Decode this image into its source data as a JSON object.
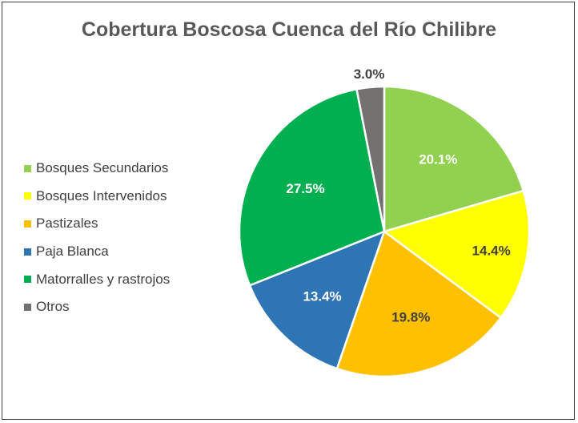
{
  "chart_data": {
    "type": "pie",
    "title": "Cobertura Boscosa Cuenca del Río Chilibre",
    "categories": [
      "Bosques Secundarios",
      "Bosques Intervenidos",
      "Pastizales",
      "Paja Blanca",
      "Matorralles y rastrojos",
      "Otros"
    ],
    "values": [
      20.1,
      14.4,
      19.8,
      13.4,
      27.5,
      3.0
    ],
    "data_labels": [
      "20.1%",
      "14.4%",
      "19.8%",
      "13.4%",
      "27.5%",
      "3.0%"
    ],
    "colors": [
      "#92D050",
      "#FFFF00",
      "#FFC000",
      "#2E75B6",
      "#00B050",
      "#767171"
    ],
    "label_colors": [
      "#ffffff",
      "#404040",
      "#404040",
      "#ffffff",
      "#ffffff",
      "#404040"
    ],
    "start_angle_deg": 0,
    "direction": "clockwise",
    "legend_position": "left"
  }
}
